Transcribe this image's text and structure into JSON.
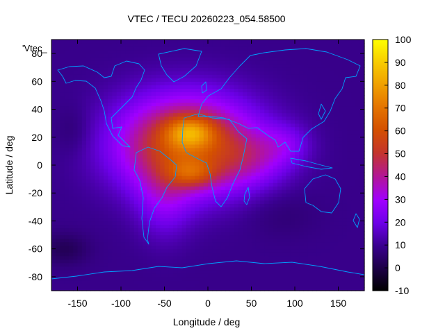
{
  "chart_data": {
    "type": "heatmap",
    "title": "VTEC / TECU 20260223_054.58500",
    "xlabel": "Longitude / deg",
    "ylabel": "Latitude / deg",
    "xlim": [
      -180,
      180
    ],
    "ylim": [
      -90,
      90
    ],
    "clim": [
      -10,
      100
    ],
    "x_ticks": [
      -150,
      -100,
      -50,
      0,
      50,
      100,
      150
    ],
    "y_ticks": [
      -80,
      -60,
      -40,
      -20,
      0,
      20,
      40,
      60,
      80
    ],
    "c_ticks": [
      -10,
      0,
      10,
      20,
      30,
      40,
      50,
      60,
      70,
      80,
      90,
      100
    ],
    "legend_entry": "'Vtec_",
    "colormap": "black-purple-red-orange-yellow (gnuplot default)",
    "grid": false,
    "overlay": "coastlines",
    "coastline_color": "#00a0ff",
    "tec_grid": {
      "lon_step": 5,
      "lat_step": 2.5,
      "background_tecu": 9,
      "anomalies": [
        {
          "lon": -25,
          "lat": 15,
          "sigma_lon": 55,
          "sigma_lat": 24,
          "amp": 52
        },
        {
          "lon": -20,
          "lat": 24,
          "sigma_lon": 20,
          "sigma_lat": 8,
          "amp": 28
        },
        {
          "lon": -18,
          "lat": -6,
          "sigma_lon": 20,
          "sigma_lat": 7,
          "amp": 20
        },
        {
          "lon": -50,
          "lat": -25,
          "sigma_lon": 22,
          "sigma_lat": 20,
          "amp": 12
        },
        {
          "lon": 50,
          "lat": 5,
          "sigma_lon": 30,
          "sigma_lat": 14,
          "amp": 14
        },
        {
          "lon": 90,
          "lat": 15,
          "sigma_lon": 20,
          "sigma_lat": 10,
          "amp": 10
        },
        {
          "lon": -165,
          "lat": -60,
          "sigma_lon": 20,
          "sigma_lat": 8,
          "amp": -7
        },
        {
          "lon": -155,
          "lat": 25,
          "sigma_lon": 15,
          "sigma_lat": 12,
          "amp": -4
        },
        {
          "lon": 85,
          "lat": -35,
          "sigma_lon": 30,
          "sigma_lat": 12,
          "amp": -3
        }
      ]
    }
  }
}
